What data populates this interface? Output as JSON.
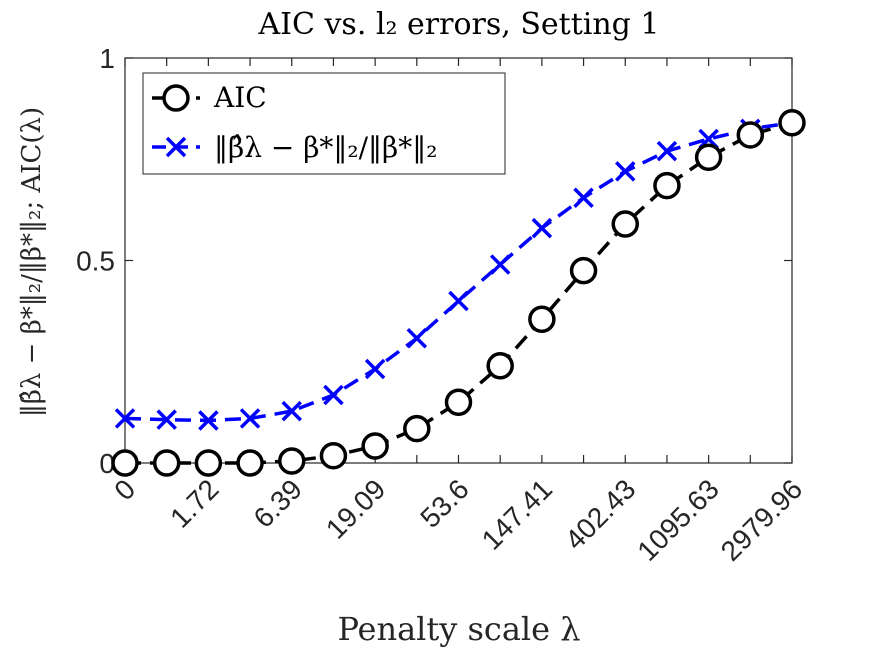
{
  "chart_data": {
    "type": "line",
    "title": "AIC vs. l₂ errors, Setting 1",
    "xlabel": "Penalty scale λ",
    "ylabel": "‖β̂λ − β*‖₂/‖β*‖₂; AIC(λ)",
    "x_tick_labels": [
      "0",
      "1.72",
      "6.39",
      "19.09",
      "53.6",
      "147.41",
      "402.43",
      "1095.63",
      "2979.96"
    ],
    "y_tick_labels": [
      "0",
      "0.5",
      "1"
    ],
    "ylim": [
      0,
      1
    ],
    "grid": false,
    "legend_position": "top-left",
    "series": [
      {
        "name": "AIC",
        "color": "#000000",
        "marker": "circle",
        "line_style": "dashed",
        "values": [
          0.0,
          0.0,
          0.0,
          0.0,
          0.005,
          0.018,
          0.042,
          0.085,
          0.15,
          0.24,
          0.355,
          0.475,
          0.59,
          0.685,
          0.755,
          0.81,
          0.84
        ]
      },
      {
        "name": "‖β̂λ − β*‖₂/‖β*‖₂",
        "color": "#0000ff",
        "marker": "x",
        "line_style": "dashed",
        "values": [
          0.11,
          0.107,
          0.105,
          0.11,
          0.128,
          0.168,
          0.232,
          0.308,
          0.4,
          0.49,
          0.58,
          0.655,
          0.72,
          0.77,
          0.8,
          0.825,
          0.84
        ]
      }
    ]
  }
}
